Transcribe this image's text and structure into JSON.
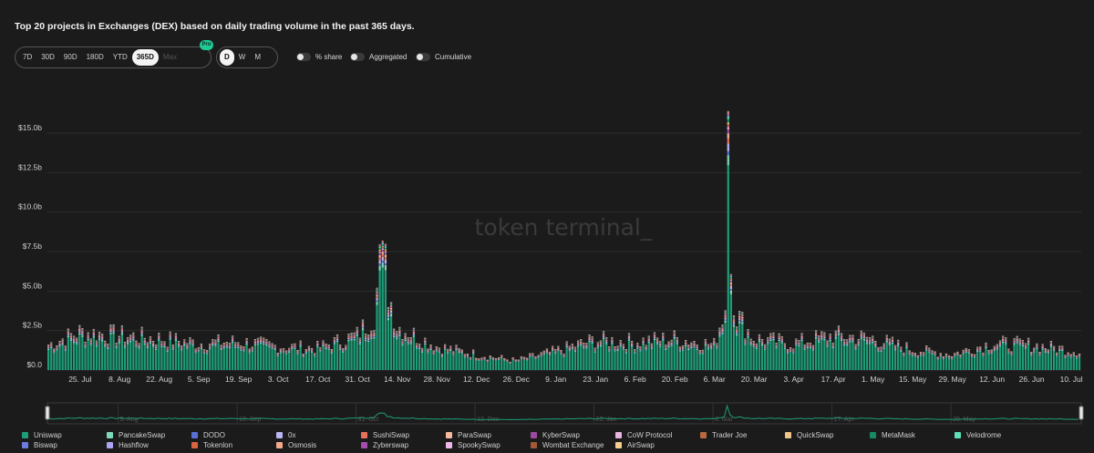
{
  "title": "Top 20 projects in Exchanges (DEX) based on daily trading volume in the past 365 days.",
  "range_buttons": [
    {
      "label": "7D",
      "state": "normal"
    },
    {
      "label": "30D",
      "state": "normal"
    },
    {
      "label": "90D",
      "state": "normal"
    },
    {
      "label": "180D",
      "state": "normal"
    },
    {
      "label": "YTD",
      "state": "normal"
    },
    {
      "label": "365D",
      "state": "active"
    },
    {
      "label": "Max",
      "state": "disabled"
    }
  ],
  "pro_badge": "Pro",
  "granularity_buttons": [
    {
      "label": "D",
      "state": "active"
    },
    {
      "label": "W",
      "state": "normal"
    },
    {
      "label": "M",
      "state": "normal"
    }
  ],
  "switches": [
    {
      "label": "% share",
      "on": false
    },
    {
      "label": "Aggregated",
      "on": false
    },
    {
      "label": "Cumulative",
      "on": false
    }
  ],
  "watermark": "token terminal_",
  "navigator_labels": [
    "8. Aug",
    "19. Sep",
    "31. Oct",
    "12. Dec",
    "23. Jan",
    "6. Mar",
    "17. Apr",
    "29. May"
  ],
  "legend": [
    {
      "name": "Uniswap",
      "color": "#1d9e78"
    },
    {
      "name": "PancakeSwap",
      "color": "#7fd9b8"
    },
    {
      "name": "DODO",
      "color": "#5a6fd6"
    },
    {
      "name": "0x",
      "color": "#b9b6f2"
    },
    {
      "name": "SushiSwap",
      "color": "#e8715a"
    },
    {
      "name": "ParaSwap",
      "color": "#f5b99e"
    },
    {
      "name": "KyberSwap",
      "color": "#9c4a9f"
    },
    {
      "name": "CoW Protocol",
      "color": "#e9b3e3"
    },
    {
      "name": "Trader Joe",
      "color": "#b96a41"
    },
    {
      "name": "QuickSwap",
      "color": "#f0c486"
    },
    {
      "name": "MetaMask",
      "color": "#178a64"
    },
    {
      "name": "Velodrome",
      "color": "#5fe0b8"
    },
    {
      "name": "Biswap",
      "color": "#6b7de0"
    },
    {
      "name": "Hashflow",
      "color": "#a9a4f4"
    },
    {
      "name": "Tokenlon",
      "color": "#d9643f"
    },
    {
      "name": "Osmosis",
      "color": "#f4a98a"
    },
    {
      "name": "Zyberswap",
      "color": "#a54dab"
    },
    {
      "name": "SpookySwap",
      "color": "#f0b7ea"
    },
    {
      "name": "Wombat Exchange",
      "color": "#a45a38"
    },
    {
      "name": "AirSwap",
      "color": "#f3cf8b"
    }
  ],
  "chart_data": {
    "type": "bar",
    "stacked": true,
    "y_unit": "USD",
    "y_ticks": [
      "$0.0",
      "$2.5b",
      "$5.0b",
      "$7.5b",
      "$10.0b",
      "$12.5b",
      "$15.0b"
    ],
    "ylim": [
      0,
      16.5
    ],
    "x_ticks": [
      "25. Jul",
      "8. Aug",
      "22. Aug",
      "5. Sep",
      "19. Sep",
      "3. Oct",
      "17. Oct",
      "31. Oct",
      "14. Nov",
      "28. Nov",
      "12. Dec",
      "26. Dec",
      "9. Jan",
      "23. Jan",
      "6. Feb",
      "20. Feb",
      "6. Mar",
      "20. Mar",
      "3. Apr",
      "17. Apr",
      "1. May",
      "15. May",
      "29. May",
      "12. Jun",
      "26. Jun",
      "10. Jul"
    ],
    "x_range": [
      "2022-07-14",
      "2023-07-13"
    ],
    "grid": true,
    "daily_total_keypoints": [
      {
        "date": "2022-07-14",
        "value": 1.6
      },
      {
        "date": "2022-07-25",
        "value": 2.4
      },
      {
        "date": "2022-08-08",
        "value": 2.2
      },
      {
        "date": "2022-08-22",
        "value": 2.0
      },
      {
        "date": "2022-09-05",
        "value": 1.7
      },
      {
        "date": "2022-09-19",
        "value": 1.8
      },
      {
        "date": "2022-10-03",
        "value": 1.5
      },
      {
        "date": "2022-10-17",
        "value": 1.4
      },
      {
        "date": "2022-10-31",
        "value": 2.2
      },
      {
        "date": "2022-11-06",
        "value": 3.5
      },
      {
        "date": "2022-11-09",
        "value": 8.1
      },
      {
        "date": "2022-11-11",
        "value": 5.0
      },
      {
        "date": "2022-11-14",
        "value": 2.8
      },
      {
        "date": "2022-11-28",
        "value": 1.5
      },
      {
        "date": "2022-12-12",
        "value": 1.0
      },
      {
        "date": "2022-12-26",
        "value": 0.6
      },
      {
        "date": "2023-01-09",
        "value": 1.2
      },
      {
        "date": "2023-01-23",
        "value": 1.9
      },
      {
        "date": "2023-02-06",
        "value": 1.8
      },
      {
        "date": "2023-02-20",
        "value": 2.0
      },
      {
        "date": "2023-03-06",
        "value": 1.6
      },
      {
        "date": "2023-03-10",
        "value": 4.0
      },
      {
        "date": "2023-03-11",
        "value": 16.2
      },
      {
        "date": "2023-03-12",
        "value": 6.0
      },
      {
        "date": "2023-03-14",
        "value": 3.5
      },
      {
        "date": "2023-03-20",
        "value": 2.0
      },
      {
        "date": "2023-04-03",
        "value": 1.7
      },
      {
        "date": "2023-04-17",
        "value": 2.2
      },
      {
        "date": "2023-05-01",
        "value": 2.0
      },
      {
        "date": "2023-05-15",
        "value": 1.3
      },
      {
        "date": "2023-05-29",
        "value": 1.0
      },
      {
        "date": "2023-06-12",
        "value": 1.7
      },
      {
        "date": "2023-06-26",
        "value": 1.6
      },
      {
        "date": "2023-07-13",
        "value": 1.2
      }
    ],
    "series": [
      "Uniswap",
      "PancakeSwap",
      "DODO",
      "0x",
      "SushiSwap",
      "ParaSwap",
      "KyberSwap",
      "CoW Protocol",
      "Trader Joe",
      "QuickSwap",
      "MetaMask",
      "Velodrome",
      "Biswap",
      "Hashflow",
      "Tokenlon",
      "Osmosis",
      "Zyberswap",
      "SpookySwap",
      "Wombat Exchange",
      "AirSwap"
    ]
  }
}
